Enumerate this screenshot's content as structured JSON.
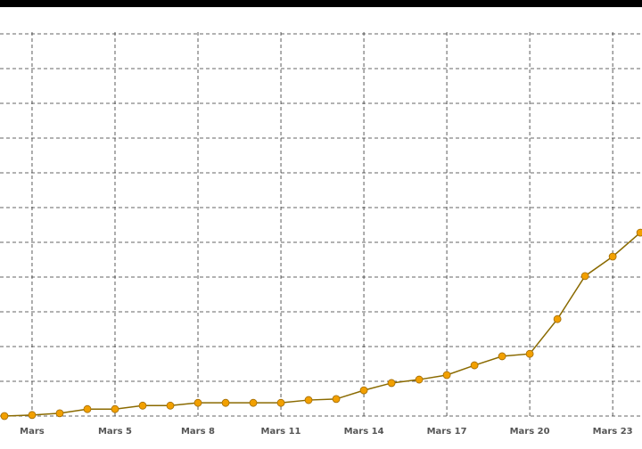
{
  "chart_data": {
    "type": "line",
    "x": [
      1,
      2,
      3,
      4,
      5,
      6,
      7,
      8,
      9,
      10,
      11,
      12,
      13,
      14,
      15,
      16,
      17,
      18,
      19,
      20,
      21,
      22,
      23,
      24
    ],
    "series": [
      {
        "color": "#f2a000",
        "line_color": "#8a6a00",
        "values": [
          0,
          0.03,
          0.08,
          0.2,
          0.2,
          0.3,
          0.3,
          0.38,
          0.38,
          0.38,
          0.38,
          0.46,
          0.49,
          0.74,
          0.95,
          1.05,
          1.18,
          1.46,
          1.72,
          1.79,
          2.79,
          4.03,
          4.59,
          5.28
        ]
      }
    ],
    "xlim": [
      0.84,
      24.06
    ],
    "xticks": [
      {
        "value": 2,
        "label": "Mars"
      },
      {
        "value": 5,
        "label": "Mars 5"
      },
      {
        "value": 8,
        "label": "Mars 8"
      },
      {
        "value": 11,
        "label": "Mars 11"
      },
      {
        "value": 14,
        "label": "Mars 14"
      },
      {
        "value": 17,
        "label": "Mars 17"
      },
      {
        "value": 20,
        "label": "Mars 20"
      },
      {
        "value": 23,
        "label": "Mars 23"
      }
    ],
    "ylim": [
      0,
      11.77
    ],
    "ygrid": [
      0,
      1,
      2,
      3,
      4,
      5,
      6,
      7,
      8,
      9,
      10,
      11
    ],
    "grid": true
  }
}
